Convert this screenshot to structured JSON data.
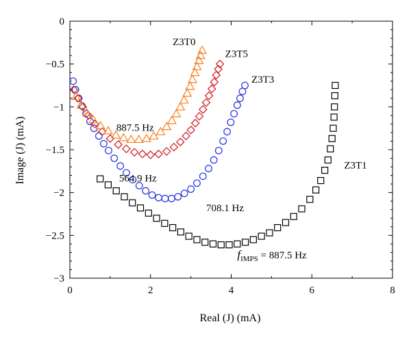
{
  "chart_data": {
    "type": "scatter",
    "xlabel": "Real (J) (mA)",
    "ylabel": "Image (J) (mA)",
    "xlim": [
      0,
      8
    ],
    "ylim": [
      -3,
      0
    ],
    "x_ticks": [
      0,
      2,
      4,
      6,
      8
    ],
    "y_ticks": [
      0,
      -0.5,
      -1,
      -1.5,
      -2,
      -2.5,
      -3
    ],
    "x_tick_labels": [
      "0",
      "2",
      "4",
      "6",
      "8"
    ],
    "y_tick_labels": [
      "0",
      "−0.5",
      "−1",
      "−1.5",
      "−2",
      "−2.5",
      "−3"
    ],
    "grid": false,
    "series": [
      {
        "name": "Z3T1",
        "marker": "square",
        "color": "#000000",
        "points": [
          [
            0.75,
            -1.84
          ],
          [
            0.95,
            -1.91
          ],
          [
            1.15,
            -1.98
          ],
          [
            1.35,
            -2.05
          ],
          [
            1.55,
            -2.12
          ],
          [
            1.75,
            -2.18
          ],
          [
            1.95,
            -2.24
          ],
          [
            2.15,
            -2.3
          ],
          [
            2.35,
            -2.36
          ],
          [
            2.55,
            -2.41
          ],
          [
            2.75,
            -2.46
          ],
          [
            2.95,
            -2.51
          ],
          [
            3.15,
            -2.55
          ],
          [
            3.35,
            -2.58
          ],
          [
            3.55,
            -2.6
          ],
          [
            3.75,
            -2.61
          ],
          [
            3.95,
            -2.61
          ],
          [
            4.15,
            -2.6
          ],
          [
            4.35,
            -2.58
          ],
          [
            4.55,
            -2.55
          ],
          [
            4.75,
            -2.51
          ],
          [
            4.95,
            -2.47
          ],
          [
            5.15,
            -2.41
          ],
          [
            5.35,
            -2.35
          ],
          [
            5.55,
            -2.28
          ],
          [
            5.75,
            -2.19
          ],
          [
            5.95,
            -2.08
          ],
          [
            6.1,
            -1.97
          ],
          [
            6.22,
            -1.86
          ],
          [
            6.32,
            -1.74
          ],
          [
            6.4,
            -1.62
          ],
          [
            6.46,
            -1.49
          ],
          [
            6.5,
            -1.37
          ],
          [
            6.53,
            -1.25
          ],
          [
            6.55,
            -1.12
          ],
          [
            6.56,
            -1.0
          ],
          [
            6.57,
            -0.87
          ],
          [
            6.58,
            -0.75
          ]
        ]
      },
      {
        "name": "Z3T3",
        "marker": "circle",
        "color": "#1f2fe0",
        "points": [
          [
            0.08,
            -0.7
          ],
          [
            0.14,
            -0.8
          ],
          [
            0.22,
            -0.9
          ],
          [
            0.3,
            -0.99
          ],
          [
            0.4,
            -1.08
          ],
          [
            0.5,
            -1.17
          ],
          [
            0.6,
            -1.25
          ],
          [
            0.72,
            -1.34
          ],
          [
            0.84,
            -1.43
          ],
          [
            0.96,
            -1.51
          ],
          [
            1.1,
            -1.6
          ],
          [
            1.25,
            -1.69
          ],
          [
            1.4,
            -1.77
          ],
          [
            1.56,
            -1.85
          ],
          [
            1.72,
            -1.92
          ],
          [
            1.88,
            -1.98
          ],
          [
            2.04,
            -2.03
          ],
          [
            2.2,
            -2.06
          ],
          [
            2.36,
            -2.07
          ],
          [
            2.52,
            -2.07
          ],
          [
            2.68,
            -2.05
          ],
          [
            2.84,
            -2.01
          ],
          [
            3.0,
            -1.96
          ],
          [
            3.15,
            -1.89
          ],
          [
            3.3,
            -1.81
          ],
          [
            3.44,
            -1.72
          ],
          [
            3.57,
            -1.62
          ],
          [
            3.69,
            -1.51
          ],
          [
            3.8,
            -1.4
          ],
          [
            3.9,
            -1.29
          ],
          [
            3.99,
            -1.18
          ],
          [
            4.07,
            -1.08
          ],
          [
            4.15,
            -0.98
          ],
          [
            4.22,
            -0.9
          ],
          [
            4.28,
            -0.82
          ],
          [
            4.34,
            -0.75
          ]
        ]
      },
      {
        "name": "Z3T5",
        "marker": "diamond",
        "color": "#d0141a",
        "points": [
          [
            0.1,
            -0.8
          ],
          [
            0.2,
            -0.9
          ],
          [
            0.32,
            -1.0
          ],
          [
            0.46,
            -1.1
          ],
          [
            0.62,
            -1.2
          ],
          [
            0.8,
            -1.29
          ],
          [
            1.0,
            -1.37
          ],
          [
            1.2,
            -1.44
          ],
          [
            1.4,
            -1.49
          ],
          [
            1.6,
            -1.53
          ],
          [
            1.8,
            -1.55
          ],
          [
            2.0,
            -1.56
          ],
          [
            2.2,
            -1.55
          ],
          [
            2.4,
            -1.52
          ],
          [
            2.58,
            -1.47
          ],
          [
            2.74,
            -1.41
          ],
          [
            2.88,
            -1.34
          ],
          [
            3.0,
            -1.27
          ],
          [
            3.11,
            -1.19
          ],
          [
            3.21,
            -1.11
          ],
          [
            3.3,
            -1.03
          ],
          [
            3.38,
            -0.95
          ],
          [
            3.45,
            -0.87
          ],
          [
            3.52,
            -0.79
          ],
          [
            3.58,
            -0.71
          ],
          [
            3.63,
            -0.63
          ],
          [
            3.68,
            -0.56
          ],
          [
            3.72,
            -0.5
          ]
        ]
      },
      {
        "name": "Z3T0",
        "marker": "triangle",
        "color": "#f57f1c",
        "points": [
          [
            0.15,
            -0.88
          ],
          [
            0.28,
            -0.98
          ],
          [
            0.42,
            -1.07
          ],
          [
            0.58,
            -1.15
          ],
          [
            0.76,
            -1.22
          ],
          [
            0.95,
            -1.28
          ],
          [
            1.14,
            -1.33
          ],
          [
            1.33,
            -1.36
          ],
          [
            1.52,
            -1.38
          ],
          [
            1.71,
            -1.38
          ],
          [
            1.9,
            -1.37
          ],
          [
            2.08,
            -1.34
          ],
          [
            2.25,
            -1.29
          ],
          [
            2.4,
            -1.23
          ],
          [
            2.53,
            -1.16
          ],
          [
            2.64,
            -1.08
          ],
          [
            2.74,
            -1.0
          ],
          [
            2.83,
            -0.92
          ],
          [
            2.91,
            -0.84
          ],
          [
            2.98,
            -0.76
          ],
          [
            3.04,
            -0.68
          ],
          [
            3.1,
            -0.6
          ],
          [
            3.15,
            -0.53
          ],
          [
            3.2,
            -0.46
          ],
          [
            3.24,
            -0.4
          ],
          [
            3.28,
            -0.34
          ]
        ]
      }
    ],
    "annotations": {
      "series_labels": [
        {
          "text": "Z3T0",
          "x": 2.55,
          "y": -0.28
        },
        {
          "text": "Z3T5",
          "x": 3.85,
          "y": -0.42
        },
        {
          "text": "Z3T3",
          "x": 4.5,
          "y": -0.72
        },
        {
          "text": "Z3T1",
          "x": 6.8,
          "y": -1.72
        }
      ],
      "freq_labels": [
        {
          "text": "887.5 Hz",
          "x": 1.15,
          "y": -1.28
        },
        {
          "text": "564.9 Hz",
          "x": 1.22,
          "y": -1.87
        },
        {
          "text": "708.1 Hz",
          "x": 3.38,
          "y": -2.22
        }
      ],
      "fimps": {
        "symbol": "f",
        "subscript": "IMPS",
        "value": " = 887.5 Hz",
        "x": 4.15,
        "y": -2.77
      }
    }
  }
}
